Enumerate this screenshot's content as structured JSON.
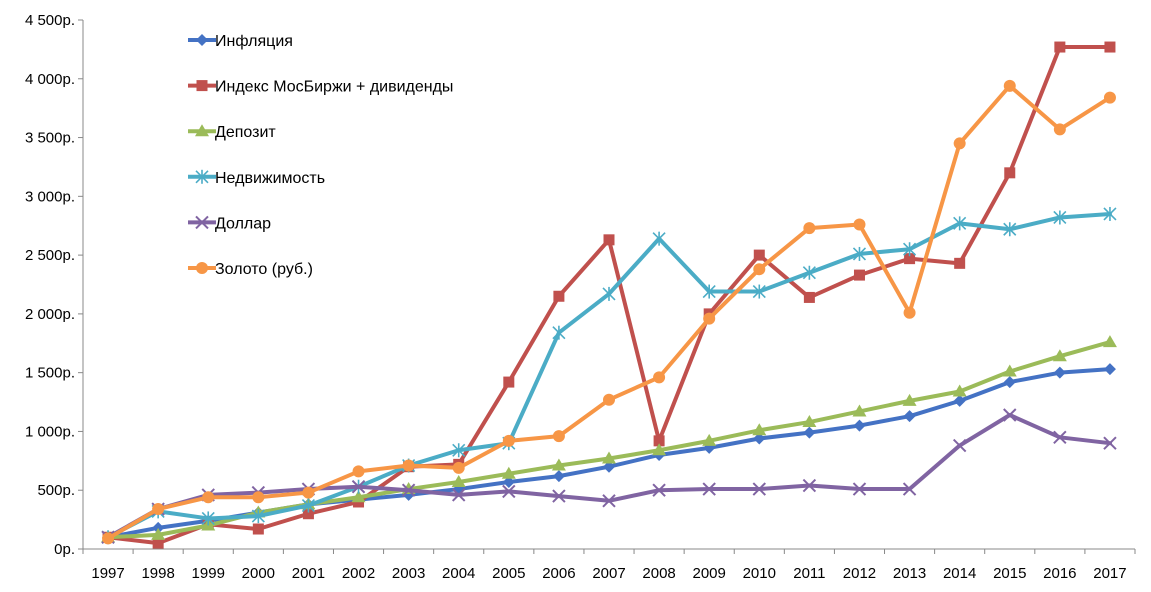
{
  "chart_data": {
    "type": "line",
    "title": "",
    "xlabel": "",
    "ylabel": "",
    "categories": [
      "1997",
      "1998",
      "1999",
      "2000",
      "2001",
      "2002",
      "2003",
      "2004",
      "2005",
      "2006",
      "2007",
      "2008",
      "2009",
      "2010",
      "2011",
      "2012",
      "2013",
      "2014",
      "2015",
      "2016",
      "2017"
    ],
    "ylim": [
      0,
      4500
    ],
    "y_ticks": [
      0,
      500,
      1000,
      1500,
      2000,
      2500,
      3000,
      3500,
      4000,
      4500
    ],
    "y_tick_labels": [
      "0р.",
      "500р.",
      "1 000р.",
      "1 500р.",
      "2 000р.",
      "2 500р.",
      "3 000р.",
      "3 500р.",
      "4 000р.",
      "4 500р."
    ],
    "grid": false,
    "legend_position": "top-left",
    "series": [
      {
        "name": "Инфляция",
        "color": "#4472C4",
        "marker": "diamond",
        "values": [
          100,
          180,
          240,
          310,
          380,
          420,
          460,
          510,
          570,
          620,
          700,
          800,
          860,
          940,
          990,
          1050,
          1130,
          1260,
          1420,
          1500,
          1530
        ]
      },
      {
        "name": "Индекс МосБиржи + дивиденды",
        "color": "#C0504D",
        "marker": "square",
        "values": [
          100,
          50,
          210,
          170,
          300,
          400,
          700,
          720,
          1420,
          2150,
          2630,
          920,
          2000,
          2500,
          2140,
          2330,
          2470,
          2430,
          3200,
          4270,
          4270
        ]
      },
      {
        "name": "Депозит",
        "color": "#9BBB59",
        "marker": "triangle",
        "values": [
          100,
          120,
          200,
          310,
          380,
          440,
          510,
          570,
          640,
          710,
          770,
          840,
          920,
          1010,
          1080,
          1170,
          1260,
          1340,
          1510,
          1640,
          1760
        ]
      },
      {
        "name": "Недвижимость",
        "color": "#4BACC6",
        "marker": "asterisk",
        "values": [
          100,
          320,
          260,
          280,
          370,
          530,
          710,
          840,
          900,
          1840,
          2170,
          2640,
          2190,
          2190,
          2350,
          2510,
          2550,
          2770,
          2720,
          2820,
          2850
        ]
      },
      {
        "name": "Доллар",
        "color": "#8064A2",
        "marker": "x",
        "values": [
          100,
          340,
          460,
          480,
          510,
          530,
          500,
          460,
          490,
          450,
          410,
          500,
          510,
          510,
          540,
          510,
          510,
          880,
          1140,
          950,
          900
        ]
      },
      {
        "name": "Золото (руб.)",
        "color": "#F79646",
        "marker": "circle",
        "values": [
          90,
          340,
          440,
          440,
          480,
          660,
          710,
          690,
          920,
          960,
          1270,
          1460,
          1960,
          2380,
          2730,
          2760,
          2010,
          3450,
          3940,
          3570,
          3840
        ]
      }
    ]
  }
}
